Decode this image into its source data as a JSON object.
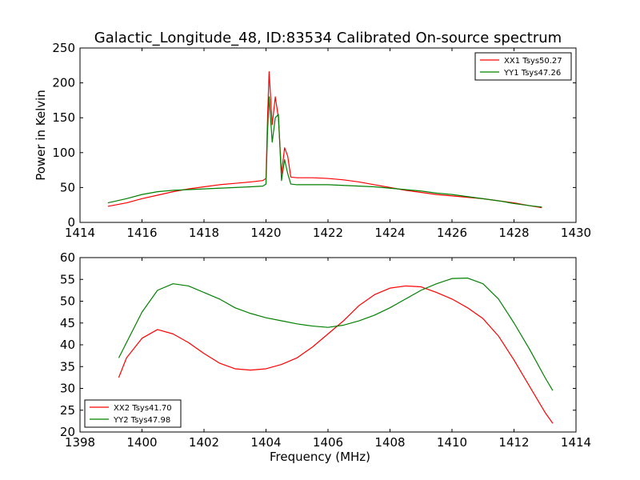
{
  "figure": {
    "title": "Galactic_Longitude_48, ID:83534 Calibrated On-source spectrum",
    "colors": {
      "red": "#ff0000",
      "green": "#008000"
    }
  },
  "chart_data": [
    {
      "type": "line",
      "ylabel": "Power in Kelvin",
      "xlabel": "",
      "xlim": [
        1414,
        1430
      ],
      "ylim": [
        0,
        250
      ],
      "xticks": [
        1414,
        1416,
        1418,
        1420,
        1422,
        1424,
        1426,
        1428,
        1430
      ],
      "yticks": [
        0,
        50,
        100,
        150,
        200,
        250
      ],
      "legend": "top-right",
      "series": [
        {
          "name": "XX1 Tsys50.27",
          "color": "#ff0000",
          "x": [
            1414.9,
            1415.5,
            1416,
            1416.5,
            1417,
            1417.5,
            1418,
            1418.5,
            1419,
            1419.5,
            1419.9,
            1420.0,
            1420.05,
            1420.1,
            1420.2,
            1420.3,
            1420.4,
            1420.5,
            1420.6,
            1420.7,
            1420.8,
            1421.0,
            1421.5,
            1422,
            1422.5,
            1423,
            1423.5,
            1424,
            1424.5,
            1425,
            1425.5,
            1426,
            1426.5,
            1427,
            1427.5,
            1428,
            1428.5,
            1428.9
          ],
          "y": [
            23,
            28,
            34,
            39,
            44,
            48,
            51,
            54,
            56,
            58,
            60,
            63,
            150,
            216,
            140,
            180,
            150,
            70,
            107,
            95,
            65,
            64,
            64,
            63,
            61,
            58,
            54,
            50,
            46,
            43,
            40,
            38,
            36,
            34,
            31,
            28,
            24,
            21
          ]
        },
        {
          "name": "YY1 Tsys47.26",
          "color": "#008000",
          "x": [
            1414.9,
            1415.5,
            1416,
            1416.5,
            1417,
            1417.5,
            1418,
            1418.5,
            1419,
            1419.5,
            1419.9,
            1420.0,
            1420.05,
            1420.1,
            1420.2,
            1420.3,
            1420.4,
            1420.5,
            1420.6,
            1420.7,
            1420.8,
            1421.0,
            1421.5,
            1422,
            1422.5,
            1423,
            1423.5,
            1424,
            1424.5,
            1425,
            1425.5,
            1426,
            1426.5,
            1427,
            1427.5,
            1428,
            1428.5,
            1428.9
          ],
          "y": [
            28,
            34,
            40,
            44,
            46,
            47,
            48,
            49,
            50,
            51,
            52,
            55,
            130,
            180,
            115,
            150,
            155,
            60,
            90,
            70,
            55,
            54,
            54,
            54,
            53,
            52,
            51,
            49,
            47,
            45,
            42,
            40,
            37,
            34,
            31,
            27,
            24,
            22
          ]
        }
      ]
    },
    {
      "type": "line",
      "ylabel": "",
      "xlabel": "Frequency (MHz)",
      "xlim": [
        1398,
        1414
      ],
      "ylim": [
        20,
        60
      ],
      "xticks": [
        1398,
        1400,
        1402,
        1404,
        1406,
        1408,
        1410,
        1412,
        1414
      ],
      "yticks": [
        20,
        25,
        30,
        35,
        40,
        45,
        50,
        55,
        60
      ],
      "legend": "bottom-left",
      "series": [
        {
          "name": "XX2 Tsys41.70",
          "color": "#ff0000",
          "x": [
            1399.25,
            1399.5,
            1400,
            1400.5,
            1401,
            1401.5,
            1402,
            1402.5,
            1403,
            1403.5,
            1404,
            1404.5,
            1405,
            1405.5,
            1406,
            1406.5,
            1407,
            1407.5,
            1408,
            1408.5,
            1409,
            1409.5,
            1410,
            1410.5,
            1411,
            1411.5,
            1412,
            1412.5,
            1413,
            1413.25
          ],
          "y": [
            32.5,
            37,
            41.5,
            43.5,
            42.5,
            40.5,
            38,
            35.8,
            34.5,
            34.2,
            34.5,
            35.5,
            37,
            39.5,
            42.5,
            45.5,
            49,
            51.5,
            53,
            53.5,
            53.3,
            52,
            50.5,
            48.5,
            46,
            42,
            36.5,
            30.5,
            24.5,
            22
          ]
        },
        {
          "name": "YY2 Tsys47.98",
          "color": "#008000",
          "x": [
            1399.25,
            1399.5,
            1400,
            1400.5,
            1401,
            1401.5,
            1402,
            1402.5,
            1403,
            1403.5,
            1404,
            1404.5,
            1405,
            1405.5,
            1406,
            1406.5,
            1407,
            1407.5,
            1408,
            1408.5,
            1409,
            1409.5,
            1410,
            1410.5,
            1411,
            1411.5,
            1412,
            1412.5,
            1413,
            1413.25
          ],
          "y": [
            37,
            40.5,
            47.5,
            52.5,
            54,
            53.5,
            52,
            50.5,
            48.5,
            47.2,
            46.2,
            45.5,
            44.8,
            44.3,
            44,
            44.5,
            45.5,
            46.8,
            48.5,
            50.5,
            52.5,
            54,
            55.2,
            55.3,
            54,
            50.5,
            45,
            39,
            32.5,
            29.5
          ]
        }
      ]
    }
  ]
}
